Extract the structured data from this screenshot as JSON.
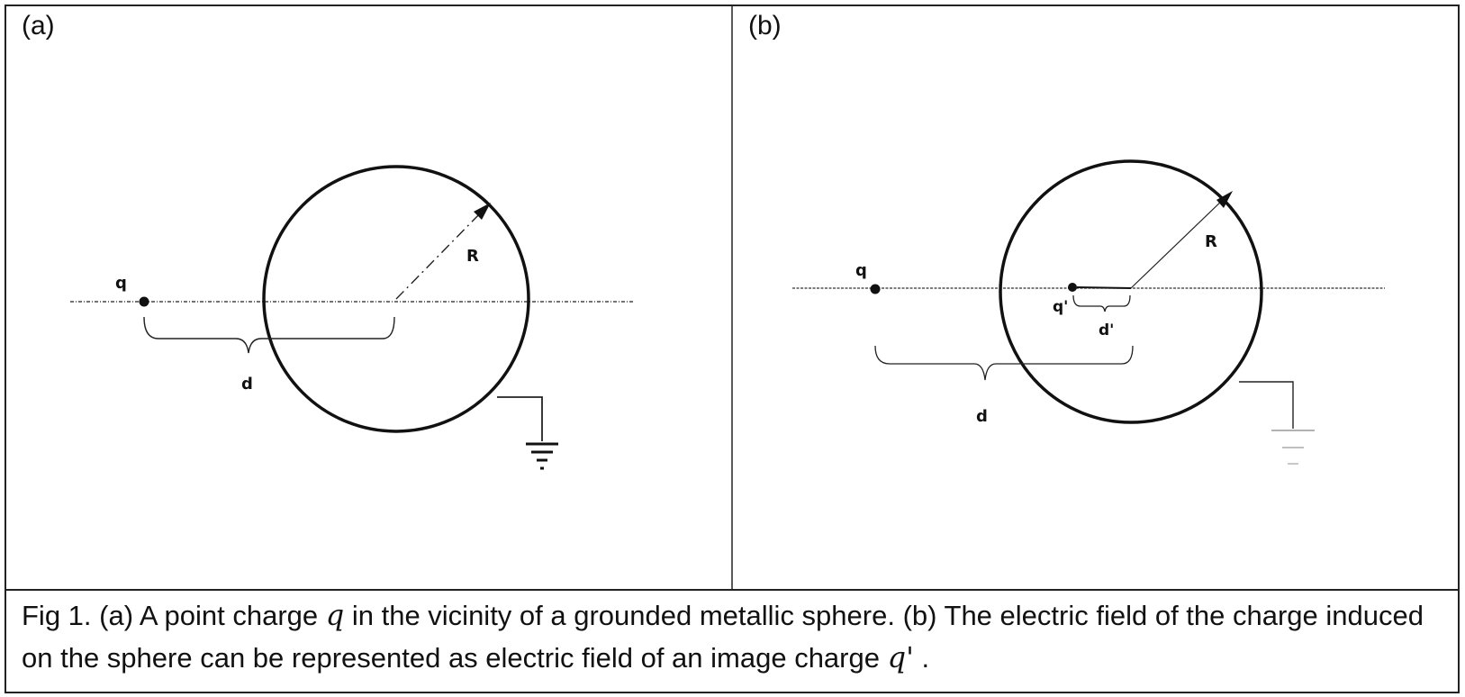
{
  "panel_a": {
    "label": "(a)",
    "charge_label": "q",
    "distance_label": "d",
    "radius_label": "R"
  },
  "panel_b": {
    "label": "(b)",
    "charge_label": "q",
    "image_charge_label": "q'",
    "image_distance_label": "d'",
    "distance_label": "d",
    "radius_label": "R"
  },
  "caption": {
    "part1": "Fig 1. (a) A point charge ",
    "symbol_q": "q",
    "part2": " in the vicinity of a grounded metallic sphere. (b) The electric field of the charge induced on the sphere can be represented as electric field of an image charge ",
    "symbol_q_prime": "q'",
    "part3": " ."
  },
  "colors": {
    "ink": "#111111",
    "frame": "#222222",
    "ground_faint": "#aaaaaa"
  }
}
